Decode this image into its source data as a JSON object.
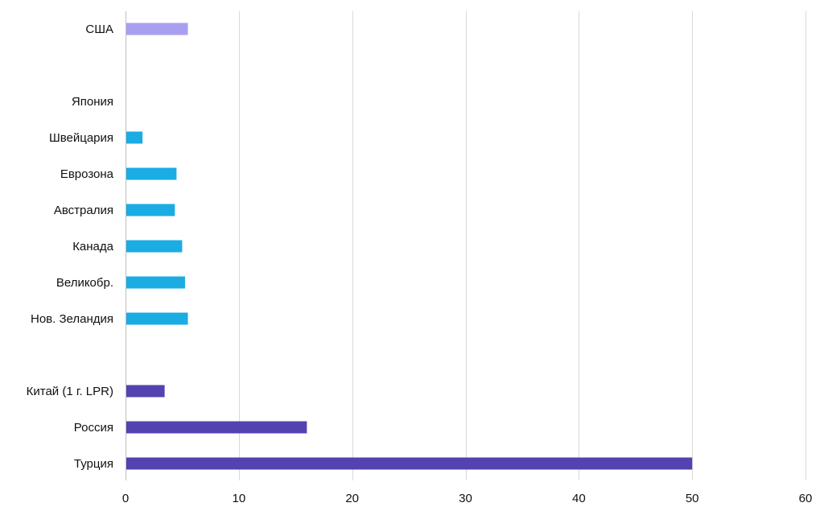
{
  "chart_data": {
    "type": "bar",
    "orientation": "horizontal",
    "title": "",
    "xlabel": "",
    "ylabel": "",
    "xlim": [
      0,
      60
    ],
    "x_ticks": [
      "0",
      "10",
      "20",
      "30",
      "40",
      "50",
      "60"
    ],
    "grid": "vertical",
    "legend": "none",
    "categories": [
      "США",
      "",
      "Япония",
      "Швейцария",
      "Еврозона",
      "Австралия",
      "Канада",
      "Великобр.",
      "Нов. Зеландия",
      "",
      "Китай (1 г. LPR)",
      "Россия",
      "Турция"
    ],
    "values": [
      5.5,
      null,
      0,
      1.5,
      4.5,
      4.35,
      5.0,
      5.25,
      5.5,
      null,
      3.45,
      16.0,
      50.0
    ],
    "bar_colors": [
      "#a89ff0",
      "",
      "#1aace3",
      "#1aace3",
      "#1aace3",
      "#1aace3",
      "#1aace3",
      "#1aace3",
      "#1aace3",
      "",
      "#5243b0",
      "#5243b0",
      "#5243b0"
    ]
  }
}
